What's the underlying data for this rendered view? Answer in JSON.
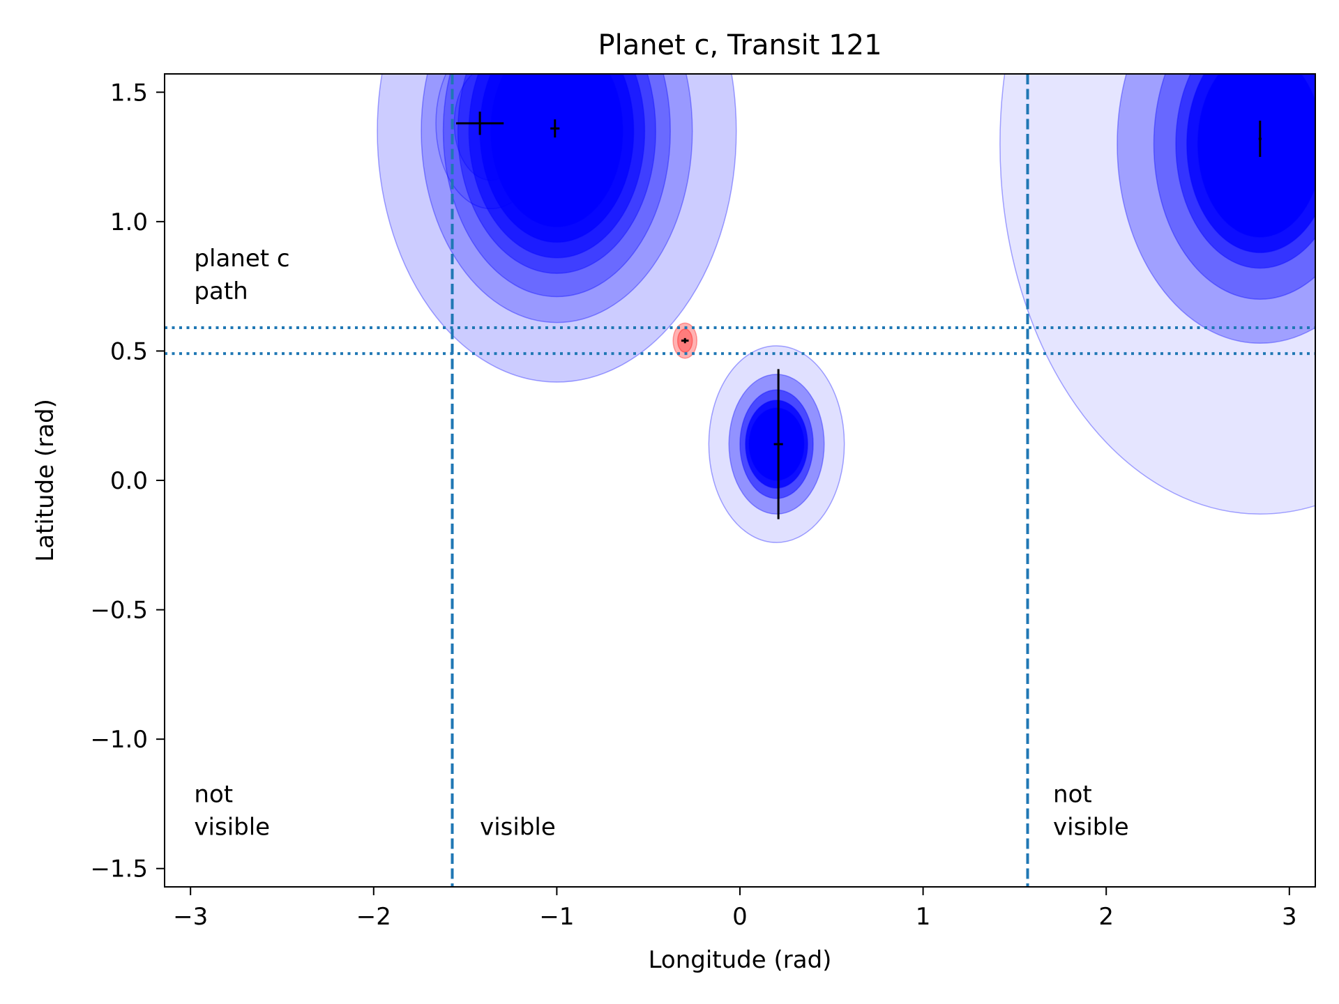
{
  "chart_data": {
    "type": "scatter",
    "title": "Planet c, Transit 121",
    "xlabel": "Longitude (rad)",
    "ylabel": "Latitude (rad)",
    "xlim": [
      -3.1416,
      3.1416
    ],
    "ylim": [
      -1.5708,
      1.5708
    ],
    "xticks": [
      {
        "value": -3,
        "label": "−3"
      },
      {
        "value": -2,
        "label": "−2"
      },
      {
        "value": -1,
        "label": "−1"
      },
      {
        "value": 0,
        "label": "0"
      },
      {
        "value": 1,
        "label": "1"
      },
      {
        "value": 2,
        "label": "2"
      },
      {
        "value": 3,
        "label": "3"
      }
    ],
    "yticks": [
      {
        "value": -1.5,
        "label": "−1.5"
      },
      {
        "value": -1.0,
        "label": "−1.0"
      },
      {
        "value": -0.5,
        "label": "−0.5"
      },
      {
        "value": 0.0,
        "label": "0.0"
      },
      {
        "value": 0.5,
        "label": "0.5"
      },
      {
        "value": 1.0,
        "label": "1.0"
      },
      {
        "value": 1.5,
        "label": "1.5"
      }
    ],
    "grid": false,
    "visibility_boundaries": [
      -1.5708,
      1.5708
    ],
    "path_latitudes": [
      0.59,
      0.49
    ],
    "annotations": [
      {
        "id": "planet-c-path",
        "lines": [
          "planet c",
          "path"
        ],
        "x": -2.98,
        "y": 0.7
      },
      {
        "id": "not-visible-left",
        "lines": [
          "not",
          "visible"
        ],
        "x": -2.98,
        "y": -1.37
      },
      {
        "id": "visible",
        "lines": [
          "visible"
        ],
        "x": -1.42,
        "y": -1.37
      },
      {
        "id": "not-visible-right",
        "lines": [
          "not",
          "visible"
        ],
        "x": 1.71,
        "y": -1.37
      }
    ],
    "distributions": [
      {
        "name": "spot-1",
        "color": "#0000ff",
        "center": [
          -1.0,
          1.35
        ],
        "levels": [
          {
            "rx": 0.98,
            "ry": 0.97,
            "opacity": 0.2
          },
          {
            "rx": 0.74,
            "ry": 0.74,
            "opacity": 0.25
          },
          {
            "rx": 0.62,
            "ry": 0.64,
            "opacity": 0.3
          },
          {
            "rx": 0.54,
            "ry": 0.55,
            "opacity": 0.4
          },
          {
            "rx": 0.48,
            "ry": 0.49,
            "opacity": 0.55
          },
          {
            "rx": 0.42,
            "ry": 0.43,
            "opacity": 0.75
          },
          {
            "rx": 0.36,
            "ry": 0.37,
            "opacity": 1.0
          }
        ]
      },
      {
        "name": "spot-1b",
        "color": "#0000ff",
        "center": [
          -1.36,
          1.38
        ],
        "levels": [
          {
            "rx": 0.3,
            "ry": 0.33,
            "opacity": 0.12
          },
          {
            "rx": 0.2,
            "ry": 0.22,
            "opacity": 0.2
          }
        ]
      },
      {
        "name": "spot-2",
        "color": "#0000ff",
        "center": [
          0.2,
          0.14
        ],
        "levels": [
          {
            "rx": 0.37,
            "ry": 0.38,
            "opacity": 0.12
          },
          {
            "rx": 0.26,
            "ry": 0.27,
            "opacity": 0.35
          },
          {
            "rx": 0.2,
            "ry": 0.21,
            "opacity": 0.5
          },
          {
            "rx": 0.17,
            "ry": 0.17,
            "opacity": 0.8
          },
          {
            "rx": 0.15,
            "ry": 0.14,
            "opacity": 1.0
          }
        ]
      },
      {
        "name": "spot-3",
        "color": "#0000ff",
        "center": [
          2.84,
          1.3
        ],
        "levels": [
          {
            "rx": 1.42,
            "ry": 1.43,
            "opacity": 0.1
          },
          {
            "rx": 0.78,
            "ry": 0.77,
            "opacity": 0.3
          },
          {
            "rx": 0.58,
            "ry": 0.6,
            "opacity": 0.35
          },
          {
            "rx": 0.46,
            "ry": 0.48,
            "opacity": 0.5
          },
          {
            "rx": 0.4,
            "ry": 0.42,
            "opacity": 0.75
          },
          {
            "rx": 0.34,
            "ry": 0.36,
            "opacity": 1.0
          }
        ]
      },
      {
        "name": "planet-spot",
        "color": "#ff0000",
        "center": [
          -0.3,
          0.54
        ],
        "levels": [
          {
            "rx": 0.065,
            "ry": 0.068,
            "opacity": 0.3
          },
          {
            "rx": 0.04,
            "ry": 0.045,
            "opacity": 0.3
          }
        ]
      }
    ],
    "points": [
      {
        "name": "point-1",
        "x": -1.42,
        "y": 1.38,
        "xerr": 0.13,
        "yerr": 0.045
      },
      {
        "name": "point-2",
        "x": -1.01,
        "y": 1.36,
        "xerr": 0.025,
        "yerr": 0.035
      },
      {
        "name": "point-3",
        "x": 0.21,
        "y": 0.14,
        "xerr": 0.025,
        "yerr": 0.29
      },
      {
        "name": "point-4",
        "x": 2.84,
        "y": 1.32,
        "xerr": 0.008,
        "yerr": 0.07
      },
      {
        "name": "point-planet",
        "x": -0.3,
        "y": 0.54,
        "xerr": 0.02,
        "yerr": 0.01
      }
    ]
  }
}
